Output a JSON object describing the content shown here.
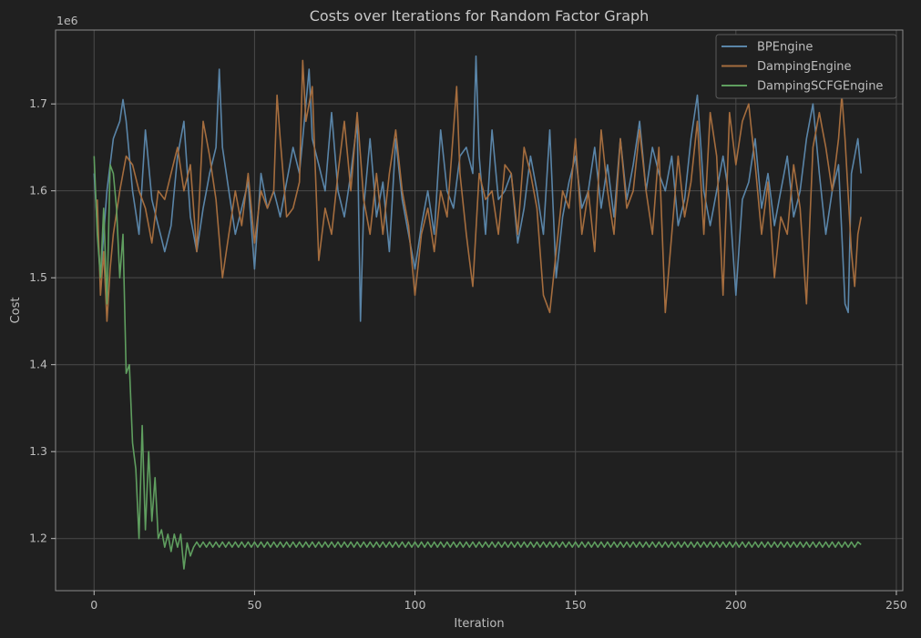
{
  "chart_data": {
    "type": "line",
    "title": "Costs over Iterations for Random Factor Graph",
    "xlabel": "Iteration",
    "ylabel": "Cost",
    "y_offset_label": "1e6",
    "xlim": [
      -12,
      252
    ],
    "ylim": [
      1.14,
      1.785
    ],
    "x_ticks": [
      0,
      50,
      100,
      150,
      200,
      250
    ],
    "y_ticks": [
      1.2,
      1.3,
      1.4,
      1.5,
      1.6,
      1.7
    ],
    "grid": true,
    "legend_position": "top-right",
    "background": "#202020",
    "grid_color": "#4a4a4a",
    "series": [
      {
        "name": "BPEngine",
        "color": "#5a85a8",
        "x_start": 0,
        "x_end": 239,
        "keypoints": [
          [
            0,
            1.62
          ],
          [
            2,
            1.5
          ],
          [
            4,
            1.6
          ],
          [
            6,
            1.66
          ],
          [
            8,
            1.68
          ],
          [
            9,
            1.705
          ],
          [
            10,
            1.68
          ],
          [
            12,
            1.6
          ],
          [
            14,
            1.55
          ],
          [
            16,
            1.67
          ],
          [
            18,
            1.59
          ],
          [
            22,
            1.53
          ],
          [
            24,
            1.56
          ],
          [
            26,
            1.64
          ],
          [
            28,
            1.68
          ],
          [
            30,
            1.57
          ],
          [
            32,
            1.53
          ],
          [
            34,
            1.58
          ],
          [
            36,
            1.62
          ],
          [
            38,
            1.65
          ],
          [
            39,
            1.74
          ],
          [
            40,
            1.65
          ],
          [
            42,
            1.6
          ],
          [
            44,
            1.55
          ],
          [
            46,
            1.58
          ],
          [
            48,
            1.61
          ],
          [
            50,
            1.51
          ],
          [
            52,
            1.62
          ],
          [
            54,
            1.58
          ],
          [
            56,
            1.6
          ],
          [
            58,
            1.57
          ],
          [
            60,
            1.61
          ],
          [
            62,
            1.65
          ],
          [
            64,
            1.62
          ],
          [
            66,
            1.7
          ],
          [
            67,
            1.74
          ],
          [
            68,
            1.66
          ],
          [
            70,
            1.63
          ],
          [
            72,
            1.6
          ],
          [
            74,
            1.69
          ],
          [
            76,
            1.6
          ],
          [
            78,
            1.57
          ],
          [
            80,
            1.62
          ],
          [
            82,
            1.68
          ],
          [
            83,
            1.45
          ],
          [
            84,
            1.58
          ],
          [
            86,
            1.66
          ],
          [
            88,
            1.57
          ],
          [
            90,
            1.61
          ],
          [
            92,
            1.53
          ],
          [
            94,
            1.66
          ],
          [
            96,
            1.59
          ],
          [
            98,
            1.55
          ],
          [
            100,
            1.51
          ],
          [
            102,
            1.56
          ],
          [
            104,
            1.6
          ],
          [
            106,
            1.55
          ],
          [
            108,
            1.67
          ],
          [
            110,
            1.6
          ],
          [
            112,
            1.58
          ],
          [
            114,
            1.64
          ],
          [
            116,
            1.65
          ],
          [
            118,
            1.62
          ],
          [
            119,
            1.755
          ],
          [
            120,
            1.64
          ],
          [
            122,
            1.55
          ],
          [
            124,
            1.67
          ],
          [
            126,
            1.59
          ],
          [
            128,
            1.6
          ],
          [
            130,
            1.62
          ],
          [
            132,
            1.54
          ],
          [
            134,
            1.58
          ],
          [
            136,
            1.64
          ],
          [
            138,
            1.6
          ],
          [
            140,
            1.55
          ],
          [
            142,
            1.67
          ],
          [
            144,
            1.5
          ],
          [
            146,
            1.57
          ],
          [
            148,
            1.61
          ],
          [
            150,
            1.64
          ],
          [
            152,
            1.58
          ],
          [
            154,
            1.6
          ],
          [
            156,
            1.65
          ],
          [
            158,
            1.58
          ],
          [
            160,
            1.63
          ],
          [
            162,
            1.57
          ],
          [
            164,
            1.66
          ],
          [
            166,
            1.59
          ],
          [
            168,
            1.63
          ],
          [
            170,
            1.68
          ],
          [
            172,
            1.6
          ],
          [
            174,
            1.65
          ],
          [
            176,
            1.62
          ],
          [
            178,
            1.6
          ],
          [
            180,
            1.64
          ],
          [
            182,
            1.56
          ],
          [
            184,
            1.59
          ],
          [
            186,
            1.66
          ],
          [
            188,
            1.71
          ],
          [
            190,
            1.6
          ],
          [
            192,
            1.56
          ],
          [
            194,
            1.6
          ],
          [
            196,
            1.64
          ],
          [
            198,
            1.59
          ],
          [
            200,
            1.48
          ],
          [
            202,
            1.59
          ],
          [
            204,
            1.61
          ],
          [
            206,
            1.66
          ],
          [
            208,
            1.58
          ],
          [
            210,
            1.62
          ],
          [
            212,
            1.56
          ],
          [
            214,
            1.6
          ],
          [
            216,
            1.64
          ],
          [
            218,
            1.57
          ],
          [
            220,
            1.6
          ],
          [
            222,
            1.66
          ],
          [
            224,
            1.7
          ],
          [
            226,
            1.62
          ],
          [
            228,
            1.55
          ],
          [
            230,
            1.6
          ],
          [
            232,
            1.63
          ],
          [
            234,
            1.47
          ],
          [
            235,
            1.46
          ],
          [
            236,
            1.62
          ],
          [
            238,
            1.66
          ],
          [
            239,
            1.62
          ]
        ]
      },
      {
        "name": "DampingEngine",
        "color": "#a56d3e",
        "x_start": 1,
        "x_end": 239,
        "keypoints": [
          [
            1,
            1.59
          ],
          [
            2,
            1.48
          ],
          [
            3,
            1.53
          ],
          [
            4,
            1.45
          ],
          [
            5,
            1.51
          ],
          [
            6,
            1.55
          ],
          [
            8,
            1.6
          ],
          [
            10,
            1.64
          ],
          [
            12,
            1.63
          ],
          [
            14,
            1.6
          ],
          [
            16,
            1.58
          ],
          [
            18,
            1.54
          ],
          [
            20,
            1.6
          ],
          [
            22,
            1.59
          ],
          [
            24,
            1.62
          ],
          [
            26,
            1.65
          ],
          [
            28,
            1.6
          ],
          [
            30,
            1.63
          ],
          [
            32,
            1.53
          ],
          [
            34,
            1.68
          ],
          [
            36,
            1.64
          ],
          [
            38,
            1.59
          ],
          [
            40,
            1.5
          ],
          [
            42,
            1.55
          ],
          [
            44,
            1.6
          ],
          [
            46,
            1.56
          ],
          [
            48,
            1.62
          ],
          [
            50,
            1.54
          ],
          [
            52,
            1.6
          ],
          [
            54,
            1.58
          ],
          [
            56,
            1.6
          ],
          [
            57,
            1.71
          ],
          [
            58,
            1.66
          ],
          [
            60,
            1.57
          ],
          [
            62,
            1.58
          ],
          [
            64,
            1.61
          ],
          [
            65,
            1.75
          ],
          [
            66,
            1.68
          ],
          [
            68,
            1.72
          ],
          [
            70,
            1.52
          ],
          [
            72,
            1.58
          ],
          [
            74,
            1.55
          ],
          [
            76,
            1.62
          ],
          [
            78,
            1.68
          ],
          [
            80,
            1.6
          ],
          [
            82,
            1.69
          ],
          [
            84,
            1.59
          ],
          [
            86,
            1.55
          ],
          [
            88,
            1.62
          ],
          [
            90,
            1.55
          ],
          [
            92,
            1.62
          ],
          [
            94,
            1.67
          ],
          [
            96,
            1.6
          ],
          [
            98,
            1.56
          ],
          [
            100,
            1.48
          ],
          [
            102,
            1.55
          ],
          [
            104,
            1.58
          ],
          [
            106,
            1.53
          ],
          [
            108,
            1.6
          ],
          [
            110,
            1.57
          ],
          [
            112,
            1.67
          ],
          [
            113,
            1.72
          ],
          [
            114,
            1.62
          ],
          [
            116,
            1.55
          ],
          [
            118,
            1.49
          ],
          [
            120,
            1.62
          ],
          [
            122,
            1.59
          ],
          [
            124,
            1.6
          ],
          [
            126,
            1.55
          ],
          [
            128,
            1.63
          ],
          [
            130,
            1.62
          ],
          [
            132,
            1.55
          ],
          [
            134,
            1.65
          ],
          [
            136,
            1.62
          ],
          [
            138,
            1.58
          ],
          [
            140,
            1.48
          ],
          [
            142,
            1.46
          ],
          [
            144,
            1.53
          ],
          [
            146,
            1.6
          ],
          [
            148,
            1.58
          ],
          [
            150,
            1.66
          ],
          [
            152,
            1.55
          ],
          [
            154,
            1.6
          ],
          [
            156,
            1.53
          ],
          [
            158,
            1.67
          ],
          [
            160,
            1.6
          ],
          [
            162,
            1.55
          ],
          [
            164,
            1.66
          ],
          [
            166,
            1.58
          ],
          [
            168,
            1.6
          ],
          [
            170,
            1.67
          ],
          [
            172,
            1.6
          ],
          [
            174,
            1.55
          ],
          [
            176,
            1.65
          ],
          [
            178,
            1.46
          ],
          [
            180,
            1.55
          ],
          [
            182,
            1.64
          ],
          [
            184,
            1.57
          ],
          [
            186,
            1.61
          ],
          [
            188,
            1.68
          ],
          [
            190,
            1.55
          ],
          [
            192,
            1.69
          ],
          [
            194,
            1.64
          ],
          [
            196,
            1.48
          ],
          [
            198,
            1.69
          ],
          [
            200,
            1.63
          ],
          [
            202,
            1.68
          ],
          [
            204,
            1.7
          ],
          [
            206,
            1.63
          ],
          [
            208,
            1.55
          ],
          [
            210,
            1.61
          ],
          [
            212,
            1.5
          ],
          [
            214,
            1.57
          ],
          [
            216,
            1.55
          ],
          [
            218,
            1.63
          ],
          [
            220,
            1.58
          ],
          [
            222,
            1.47
          ],
          [
            224,
            1.65
          ],
          [
            226,
            1.69
          ],
          [
            228,
            1.65
          ],
          [
            230,
            1.6
          ],
          [
            232,
            1.66
          ],
          [
            233,
            1.71
          ],
          [
            234,
            1.66
          ],
          [
            236,
            1.53
          ],
          [
            237,
            1.49
          ],
          [
            238,
            1.55
          ],
          [
            239,
            1.57
          ]
        ]
      },
      {
        "name": "DampingSCFGEngine",
        "color": "#5f9e5f",
        "x_start": 0,
        "x_end": 239,
        "keypoints": [
          [
            0,
            1.64
          ],
          [
            1,
            1.55
          ],
          [
            2,
            1.5
          ],
          [
            3,
            1.58
          ],
          [
            4,
            1.47
          ],
          [
            5,
            1.63
          ],
          [
            6,
            1.62
          ],
          [
            7,
            1.58
          ],
          [
            8,
            1.5
          ],
          [
            9,
            1.55
          ],
          [
            10,
            1.39
          ],
          [
            11,
            1.4
          ],
          [
            12,
            1.31
          ],
          [
            13,
            1.28
          ],
          [
            14,
            1.2
          ],
          [
            15,
            1.33
          ],
          [
            16,
            1.21
          ],
          [
            17,
            1.3
          ],
          [
            18,
            1.22
          ],
          [
            19,
            1.27
          ],
          [
            20,
            1.2
          ],
          [
            21,
            1.21
          ],
          [
            22,
            1.19
          ],
          [
            23,
            1.205
          ],
          [
            24,
            1.185
          ],
          [
            25,
            1.205
          ],
          [
            26,
            1.19
          ],
          [
            27,
            1.205
          ],
          [
            28,
            1.165
          ],
          [
            29,
            1.195
          ],
          [
            30,
            1.18
          ],
          [
            31,
            1.19
          ],
          [
            32,
            1.195
          ],
          [
            239,
            1.193
          ]
        ],
        "steady_state": {
          "from_x": 32,
          "value": 1.193,
          "oscillation": 0.003
        }
      }
    ]
  }
}
